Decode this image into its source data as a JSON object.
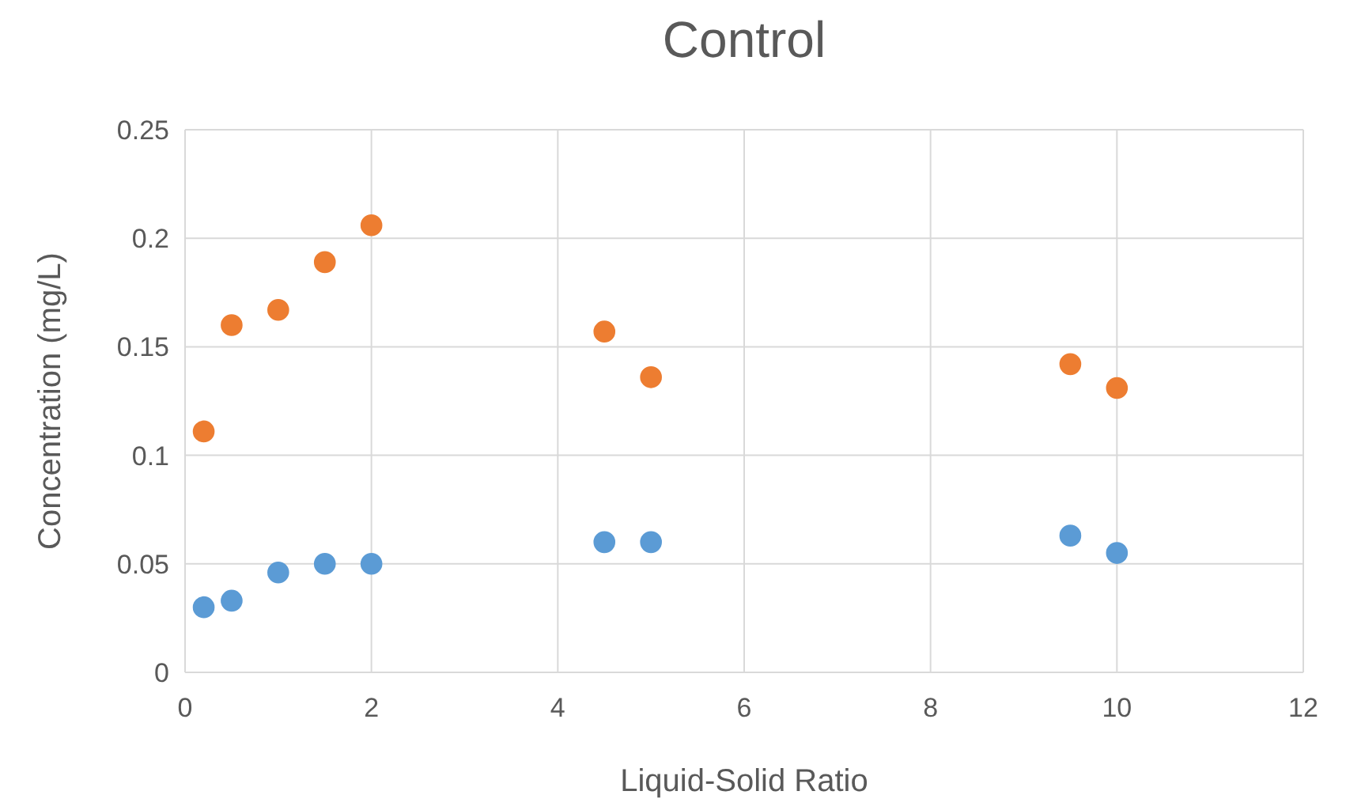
{
  "chart_data": {
    "type": "scatter",
    "title": "Control",
    "xlabel": "Liquid-Solid Ratio",
    "ylabel": "Concentration (mg/L)",
    "xlim": [
      0,
      12
    ],
    "xticks": [
      0,
      2,
      4,
      6,
      8,
      10,
      12
    ],
    "ylim": [
      0,
      0.25
    ],
    "yticks": [
      0,
      0.05,
      0.1,
      0.15,
      0.2,
      0.25
    ],
    "grid": true,
    "marker": "circle",
    "series": [
      {
        "color": "#ed7d31",
        "x": [
          0.2,
          0.5,
          1,
          1.5,
          2,
          4.5,
          5,
          9.5,
          10
        ],
        "values": [
          0.111,
          0.16,
          0.167,
          0.189,
          0.206,
          0.157,
          0.136,
          0.142,
          0.131
        ]
      },
      {
        "color": "#5b9bd5",
        "x": [
          0.2,
          0.5,
          1,
          1.5,
          2,
          4.5,
          5,
          9.5,
          10
        ],
        "values": [
          0.03,
          0.033,
          0.046,
          0.05,
          0.05,
          0.06,
          0.06,
          0.063,
          0.055
        ]
      }
    ]
  }
}
